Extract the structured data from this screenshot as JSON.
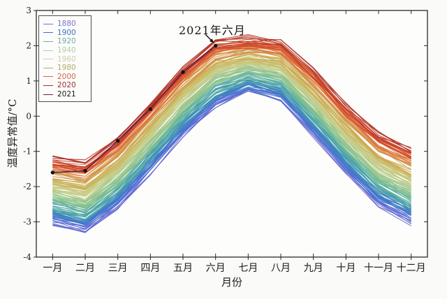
{
  "axes": {
    "y_label": "温度异常值/°C",
    "x_label": "月份",
    "y_ticks": [
      "3",
      "2",
      "1",
      "0",
      "-1",
      "-2",
      "-3",
      "-4"
    ],
    "y_tick_values": [
      3,
      2,
      1,
      0,
      -1,
      -2,
      -3,
      -4
    ],
    "x_tick_labels": [
      "一月",
      "二月",
      "三月",
      "四月",
      "五月",
      "六月",
      "七月",
      "八月",
      "九月",
      "十月",
      "十一月",
      "十二月"
    ],
    "axis_color": "#2a2a2a"
  },
  "annotation": {
    "text": "2021年六月",
    "month_index": 5,
    "value": 2.0,
    "arrow_color": "#111111"
  },
  "legend": {
    "entries": [
      {
        "label": "1880",
        "color": "#7b6fd0"
      },
      {
        "label": "1900",
        "color": "#3f6fc0"
      },
      {
        "label": "1920",
        "color": "#74aaa4"
      },
      {
        "label": "1940",
        "color": "#b2ccae"
      },
      {
        "label": "1960",
        "color": "#ccd0a0"
      },
      {
        "label": "1980",
        "color": "#b3ac62"
      },
      {
        "label": "2000",
        "color": "#d2654a"
      },
      {
        "label": "2020",
        "color": "#a03030"
      },
      {
        "label": "2021",
        "color": "#6e2145",
        "label_color": "#1a1a1a"
      }
    ]
  },
  "chart_data": {
    "type": "line",
    "title": "",
    "xlabel": "月份",
    "ylabel": "温度异常值/°C",
    "ylim": [
      -4,
      3
    ],
    "grid": false,
    "legend_position": "upper-left",
    "categories": [
      "一月",
      "二月",
      "三月",
      "四月",
      "五月",
      "六月",
      "七月",
      "八月",
      "九月",
      "十月",
      "十一月",
      "十二月"
    ],
    "render_years": {
      "start": 1880,
      "end": 2020,
      "jitter": 0.17,
      "year_offset": 0.24
    },
    "series": [
      {
        "year": 1880,
        "color": "#6c66d2",
        "values": [
          -3.0,
          -3.25,
          -2.55,
          -1.55,
          -0.5,
          0.3,
          0.75,
          0.5,
          -0.5,
          -1.55,
          -2.5,
          -3.0
        ]
      },
      {
        "year": 1900,
        "color": "#3b72d1",
        "values": [
          -2.78,
          -3.02,
          -2.32,
          -1.32,
          -0.28,
          0.52,
          0.92,
          0.69,
          -0.28,
          -1.33,
          -2.26,
          -2.75
        ]
      },
      {
        "year": 1920,
        "color": "#4aaaa2",
        "values": [
          -2.55,
          -2.78,
          -2.08,
          -1.08,
          -0.04,
          0.75,
          1.11,
          0.9,
          -0.05,
          -1.09,
          -2.0,
          -2.49
        ]
      },
      {
        "year": 1940,
        "color": "#8fc48c",
        "values": [
          -2.24,
          -2.45,
          -1.75,
          -0.75,
          0.28,
          1.06,
          1.36,
          1.17,
          0.26,
          -0.77,
          -1.66,
          -2.14
        ]
      },
      {
        "year": 1960,
        "color": "#c9cf8e",
        "values": [
          -2.01,
          -2.21,
          -1.51,
          -0.51,
          0.52,
          1.29,
          1.55,
          1.38,
          0.49,
          -0.53,
          -1.4,
          -1.87
        ]
      },
      {
        "year": 1980,
        "color": "#c9b75c",
        "values": [
          -1.78,
          -1.96,
          -1.26,
          -0.26,
          0.76,
          1.52,
          1.74,
          1.59,
          0.72,
          -0.29,
          -1.14,
          -1.61
        ]
      },
      {
        "year": 2000,
        "color": "#e0733c",
        "values": [
          -1.47,
          -1.64,
          -0.94,
          0.06,
          1.07,
          1.83,
          1.98,
          1.86,
          1.03,
          0.03,
          -0.81,
          -1.26
        ]
      },
      {
        "year": 2020,
        "color": "#a82a22",
        "values": [
          -1.2,
          -1.35,
          -0.65,
          0.35,
          1.35,
          2.1,
          2.2,
          2.1,
          1.3,
          0.3,
          -0.5,
          -0.95
        ]
      },
      {
        "year": 2021,
        "color": "#6e2145",
        "marker": "black-dot",
        "values": [
          -1.6,
          -1.55,
          -0.7,
          0.2,
          1.25,
          2.0
        ]
      }
    ],
    "colormap": [
      {
        "year": 1880,
        "color": "#6c66d2"
      },
      {
        "year": 1900,
        "color": "#3b72d1"
      },
      {
        "year": 1920,
        "color": "#4aaaa2"
      },
      {
        "year": 1940,
        "color": "#8fc48c"
      },
      {
        "year": 1960,
        "color": "#c9cf8e"
      },
      {
        "year": 1980,
        "color": "#c9b75c"
      },
      {
        "year": 2000,
        "color": "#e0733c"
      },
      {
        "year": 2012,
        "color": "#cf4527"
      },
      {
        "year": 2020,
        "color": "#a82a22"
      }
    ]
  }
}
